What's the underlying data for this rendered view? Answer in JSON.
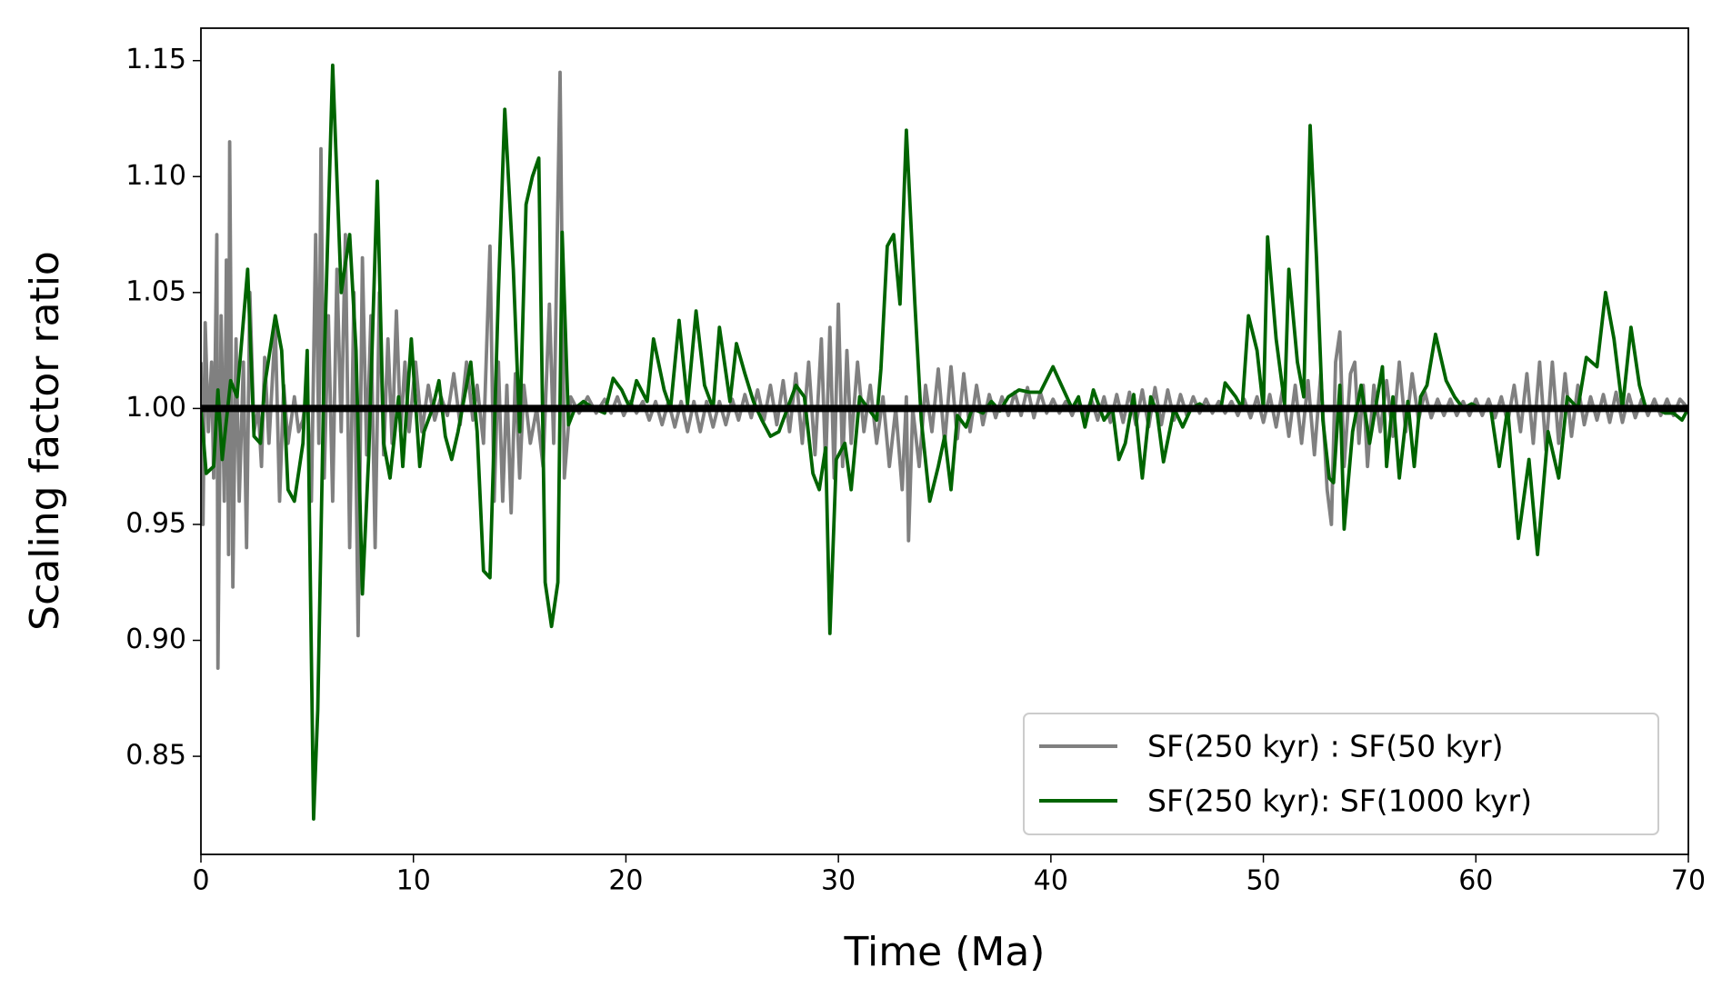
{
  "chart_data": {
    "type": "line",
    "xlabel": "Time (Ma)",
    "ylabel": "Scaling factor ratio",
    "xlim": [
      0,
      70
    ],
    "ylim": [
      0.8077,
      1.164
    ],
    "xticks": [
      0,
      10,
      20,
      30,
      40,
      50,
      60,
      70
    ],
    "yticks": [
      0.85,
      {
        "value": 0.9,
        "label": "0.90"
      },
      0.95,
      {
        "value": 1,
        "label": "1.00"
      },
      1.05,
      {
        "value": 1.1,
        "label": "1.10"
      },
      1.15
    ],
    "hline": 1,
    "hline_color": "#000000",
    "legend": "lower right",
    "series": [
      {
        "name": "SF(250 kyr) : SF(50 kyr)",
        "color": "#808080",
        "x": [
          0,
          0.1,
          0.2,
          0.35,
          0.5,
          0.6,
          0.75,
          0.8,
          0.95,
          1.1,
          1.2,
          1.3,
          1.35,
          1.5,
          1.65,
          1.8,
          2.0,
          2.15,
          2.3,
          2.5,
          2.7,
          2.85,
          3.0,
          3.2,
          3.5,
          3.7,
          3.9,
          4.1,
          4.4,
          4.6,
          4.8,
          5.0,
          5.2,
          5.4,
          5.55,
          5.65,
          5.8,
          6.0,
          6.2,
          6.4,
          6.6,
          6.8,
          7.0,
          7.2,
          7.4,
          7.6,
          7.8,
          8.0,
          8.2,
          8.4,
          8.6,
          8.8,
          9.0,
          9.2,
          9.4,
          9.6,
          9.8,
          10.1,
          10.4,
          10.7,
          11.0,
          11.3,
          11.6,
          11.9,
          12.2,
          12.5,
          12.8,
          13.0,
          13.3,
          13.6,
          13.8,
          14.0,
          14.2,
          14.4,
          14.6,
          14.8,
          15.0,
          15.2,
          15.5,
          15.8,
          16.1,
          16.4,
          16.6,
          16.9,
          17.1,
          17.4,
          17.8,
          18.2,
          18.6,
          19.0,
          19.3,
          19.6,
          19.9,
          20.2,
          20.5,
          20.8,
          21.1,
          21.4,
          21.7,
          22.0,
          22.3,
          22.6,
          22.9,
          23.2,
          23.5,
          23.8,
          24.1,
          24.4,
          24.7,
          25.0,
          25.3,
          25.6,
          25.9,
          26.2,
          26.5,
          26.8,
          27.1,
          27.4,
          27.7,
          28.0,
          28.3,
          28.6,
          28.9,
          29.2,
          29.4,
          29.6,
          29.8,
          30.0,
          30.2,
          30.4,
          30.6,
          30.9,
          31.2,
          31.5,
          31.8,
          32.1,
          32.4,
          32.7,
          33.0,
          33.2,
          33.3,
          33.5,
          33.8,
          34.1,
          34.4,
          34.7,
          35.0,
          35.3,
          35.6,
          35.9,
          36.2,
          36.5,
          36.8,
          37.1,
          37.4,
          37.7,
          38.0,
          38.3,
          38.6,
          38.9,
          39.2,
          39.5,
          39.8,
          40.1,
          40.4,
          40.7,
          41.0,
          41.3,
          41.6,
          41.9,
          42.2,
          42.5,
          42.8,
          43.1,
          43.4,
          43.7,
          44.0,
          44.3,
          44.6,
          44.9,
          45.2,
          45.5,
          45.8,
          46.1,
          46.4,
          46.7,
          47.0,
          47.3,
          47.6,
          47.9,
          48.2,
          48.5,
          48.8,
          49.1,
          49.4,
          49.7,
          50.0,
          50.3,
          50.6,
          50.9,
          51.2,
          51.5,
          51.8,
          52.1,
          52.4,
          52.7,
          53.0,
          53.2,
          53.4,
          53.6,
          53.8,
          54.1,
          54.3,
          54.5,
          54.7,
          54.9,
          55.2,
          55.5,
          55.8,
          56.1,
          56.4,
          56.7,
          57.0,
          57.3,
          57.6,
          57.9,
          58.2,
          58.5,
          58.8,
          59.1,
          59.4,
          59.7,
          60.0,
          60.3,
          60.6,
          60.9,
          61.2,
          61.5,
          61.8,
          62.1,
          62.4,
          62.7,
          63.0,
          63.3,
          63.6,
          63.9,
          64.2,
          64.5,
          64.8,
          65.1,
          65.4,
          65.7,
          66.0,
          66.3,
          66.6,
          66.9,
          67.2,
          67.5,
          67.8,
          68.1,
          68.4,
          68.7,
          69.0,
          69.3,
          69.6,
          70.0
        ],
        "values": [
          1.02,
          0.95,
          1.037,
          0.99,
          1.02,
          0.97,
          1.075,
          0.888,
          1.04,
          0.96,
          1.064,
          0.937,
          1.115,
          0.923,
          1.03,
          0.96,
          1.02,
          0.94,
          1.05,
          0.99,
          1.0,
          0.975,
          1.022,
          0.985,
          1.036,
          0.96,
          1.01,
          0.985,
          1.005,
          0.99,
          0.995,
          1.01,
          0.96,
          1.075,
          0.985,
          1.112,
          0.97,
          1.04,
          0.96,
          1.06,
          0.99,
          1.075,
          0.94,
          1.05,
          0.902,
          1.065,
          0.98,
          1.04,
          0.94,
          1.05,
          0.98,
          1.03,
          0.985,
          1.042,
          0.99,
          1.02,
          0.99,
          1.02,
          0.99,
          1.01,
          0.995,
          1.005,
          0.997,
          1.015,
          0.993,
          1.02,
          0.995,
          1.01,
          0.985,
          1.07,
          0.96,
          1.02,
          0.96,
          1.01,
          0.955,
          1.015,
          0.97,
          1.01,
          0.985,
          1.0,
          0.975,
          1.045,
          0.985,
          1.145,
          0.97,
          1.005,
          0.998,
          1.005,
          0.998,
          1.004,
          0.998,
          1.005,
          0.997,
          1.003,
          0.998,
          1.003,
          0.995,
          1.003,
          0.993,
          1.003,
          0.992,
          1.003,
          0.99,
          1.003,
          0.99,
          1.003,
          0.992,
          1.003,
          0.993,
          1.004,
          0.995,
          1.006,
          0.996,
          1.008,
          0.995,
          1.01,
          0.993,
          1.012,
          0.99,
          1.015,
          0.985,
          1.02,
          0.98,
          1.03,
          0.975,
          1.035,
          0.97,
          1.045,
          0.975,
          1.025,
          0.985,
          1.02,
          0.99,
          1.01,
          0.985,
          1.005,
          0.975,
          1.0,
          0.965,
          1.005,
          0.943,
          1.0,
          0.975,
          1.01,
          0.99,
          1.017,
          0.985,
          1.018,
          0.987,
          1.015,
          0.99,
          1.01,
          0.993,
          1.006,
          0.996,
          1.005,
          0.997,
          1.007,
          0.997,
          1.009,
          0.996,
          1.007,
          0.998,
          1.004,
          0.998,
          1.003,
          0.997,
          1.004,
          0.996,
          1.004,
          0.995,
          1.005,
          0.994,
          1.006,
          0.994,
          1.007,
          0.993,
          1.008,
          0.992,
          1.009,
          0.993,
          1.008,
          0.995,
          1.006,
          0.997,
          1.005,
          0.998,
          1.004,
          0.998,
          1.003,
          0.998,
          1.003,
          0.997,
          1.004,
          0.996,
          1.005,
          0.994,
          1.006,
          0.992,
          1.008,
          0.988,
          1.01,
          0.985,
          1.012,
          0.98,
          1.015,
          0.965,
          0.95,
          1.02,
          1.033,
          0.975,
          1.015,
          1.02,
          0.985,
          1.01,
          0.975,
          1.01,
          0.99,
          1.012,
          0.988,
          1.02,
          0.99,
          1.015,
          0.995,
          1.007,
          0.996,
          1.004,
          0.997,
          1.004,
          0.997,
          1.003,
          0.997,
          1.004,
          0.997,
          1.004,
          0.996,
          1.005,
          0.994,
          1.01,
          0.99,
          1.015,
          0.985,
          1.02,
          0.982,
          1.02,
          0.985,
          1.015,
          0.988,
          1.01,
          0.993,
          1.005,
          0.995,
          1.006,
          0.994,
          1.007,
          0.994,
          1.006,
          0.996,
          1.004,
          0.997,
          1.004,
          0.997,
          1.004,
          0.997,
          1.004,
          1.0
        ]
      },
      {
        "name": "SF(250 kyr): SF(1000 kyr)",
        "color": "#006400",
        "x": [
          0,
          0.25,
          0.6,
          0.8,
          1.0,
          1.4,
          1.7,
          2.2,
          2.5,
          2.8,
          3.0,
          3.5,
          3.8,
          4.1,
          4.4,
          4.8,
          5.0,
          5.3,
          5.5,
          5.8,
          6.2,
          6.6,
          7.0,
          7.3,
          7.6,
          7.9,
          8.3,
          8.6,
          8.9,
          9.3,
          9.5,
          9.9,
          10.3,
          10.5,
          10.9,
          11.2,
          11.5,
          11.8,
          12.1,
          12.4,
          12.7,
          13.0,
          13.3,
          13.6,
          14.0,
          14.3,
          14.7,
          15.0,
          15.3,
          15.6,
          15.9,
          16.2,
          16.5,
          16.8,
          17.0,
          17.3,
          17.6,
          18.0,
          18.5,
          19.0,
          19.4,
          19.8,
          20.2,
          20.5,
          21.0,
          21.3,
          21.8,
          22.1,
          22.5,
          22.9,
          23.3,
          23.7,
          24.1,
          24.4,
          24.9,
          25.2,
          25.6,
          26.0,
          26.4,
          26.8,
          27.2,
          27.6,
          28.0,
          28.4,
          28.8,
          29.1,
          29.4,
          29.6,
          29.9,
          30.3,
          30.6,
          31.0,
          31.4,
          31.8,
          32.0,
          32.3,
          32.6,
          32.9,
          33.2,
          33.6,
          33.9,
          34.3,
          34.7,
          35.0,
          35.3,
          35.6,
          36.0,
          36.3,
          36.8,
          37.2,
          37.6,
          38.0,
          38.5,
          39.0,
          39.5,
          40.1,
          40.5,
          41.0,
          41.3,
          41.6,
          42.0,
          42.5,
          42.9,
          43.2,
          43.5,
          43.9,
          44.3,
          44.7,
          45.0,
          45.3,
          45.8,
          46.2,
          46.6,
          47.0,
          47.3,
          47.7,
          48.0,
          48.2,
          48.7,
          49.0,
          49.3,
          49.7,
          50.0,
          50.2,
          50.6,
          51.0,
          51.2,
          51.6,
          51.9,
          52.2,
          52.5,
          52.8,
          53.1,
          53.3,
          53.6,
          53.8,
          54.2,
          54.6,
          55.0,
          55.6,
          55.8,
          56.1,
          56.4,
          56.8,
          57.1,
          57.4,
          57.7,
          58.1,
          58.6,
          59.0,
          59.4,
          59.8,
          60.2,
          60.7,
          61.1,
          61.5,
          62.0,
          62.5,
          62.9,
          63.4,
          63.9,
          64.3,
          64.8,
          65.2,
          65.7,
          66.1,
          66.5,
          66.9,
          67.3,
          67.7,
          68.0,
          68.5,
          68.9,
          69.3,
          69.7,
          70.0
        ],
        "values": [
          1.0,
          0.972,
          0.975,
          1.008,
          0.978,
          1.012,
          1.005,
          1.06,
          0.988,
          0.985,
          1.01,
          1.04,
          1.025,
          0.965,
          0.96,
          0.985,
          1.025,
          0.823,
          0.87,
          1.02,
          1.148,
          1.05,
          1.075,
          1.025,
          0.92,
          0.98,
          1.098,
          0.985,
          0.97,
          1.005,
          0.975,
          1.03,
          0.975,
          0.99,
          1.0,
          1.012,
          0.988,
          0.978,
          0.99,
          1.005,
          1.02,
          0.99,
          0.93,
          0.927,
          1.05,
          1.129,
          1.06,
          0.99,
          1.088,
          1.1,
          1.108,
          0.925,
          0.906,
          0.925,
          1.076,
          0.993,
          1.0,
          1.003,
          1.0,
          0.998,
          1.013,
          1.008,
          1.0,
          1.012,
          1.003,
          1.03,
          1.008,
          1.0,
          1.038,
          1.002,
          1.042,
          1.01,
          1.0,
          1.035,
          1.003,
          1.028,
          1.015,
          1.003,
          0.995,
          0.988,
          0.99,
          1.0,
          1.01,
          1.005,
          0.972,
          0.965,
          0.983,
          0.903,
          0.978,
          0.985,
          0.965,
          1.005,
          1.0,
          0.995,
          1.017,
          1.07,
          1.075,
          1.045,
          1.12,
          1.045,
          0.995,
          0.96,
          0.975,
          0.988,
          0.965,
          0.997,
          0.992,
          1.0,
          0.998,
          1.003,
          0.999,
          1.005,
          1.008,
          1.007,
          1.007,
          1.018,
          1.01,
          1.0,
          1.005,
          0.992,
          1.008,
          0.995,
          1.0,
          0.978,
          0.985,
          1.006,
          0.97,
          1.005,
          0.998,
          0.977,
          1.0,
          0.992,
          1.0,
          1.002,
          1.0,
          1.0,
          1.0,
          1.011,
          1.005,
          1.0,
          1.04,
          1.025,
          1.0,
          1.074,
          1.03,
          1.002,
          1.06,
          1.02,
          1.005,
          1.122,
          1.065,
          0.995,
          0.97,
          0.968,
          1.01,
          0.948,
          0.99,
          1.01,
          0.985,
          1.018,
          0.975,
          1.005,
          0.97,
          1.003,
          0.975,
          1.005,
          1.01,
          1.032,
          1.012,
          1.005,
          1.0,
          1.002,
          1.0,
          1.0,
          0.975,
          1.0,
          0.944,
          0.978,
          0.937,
          0.99,
          0.97,
          1.005,
          1.0,
          1.022,
          1.018,
          1.05,
          1.03,
          1.0,
          1.035,
          1.01,
          1.0,
          1.0,
          0.998,
          0.998,
          0.995,
          1.0
        ]
      }
    ]
  }
}
